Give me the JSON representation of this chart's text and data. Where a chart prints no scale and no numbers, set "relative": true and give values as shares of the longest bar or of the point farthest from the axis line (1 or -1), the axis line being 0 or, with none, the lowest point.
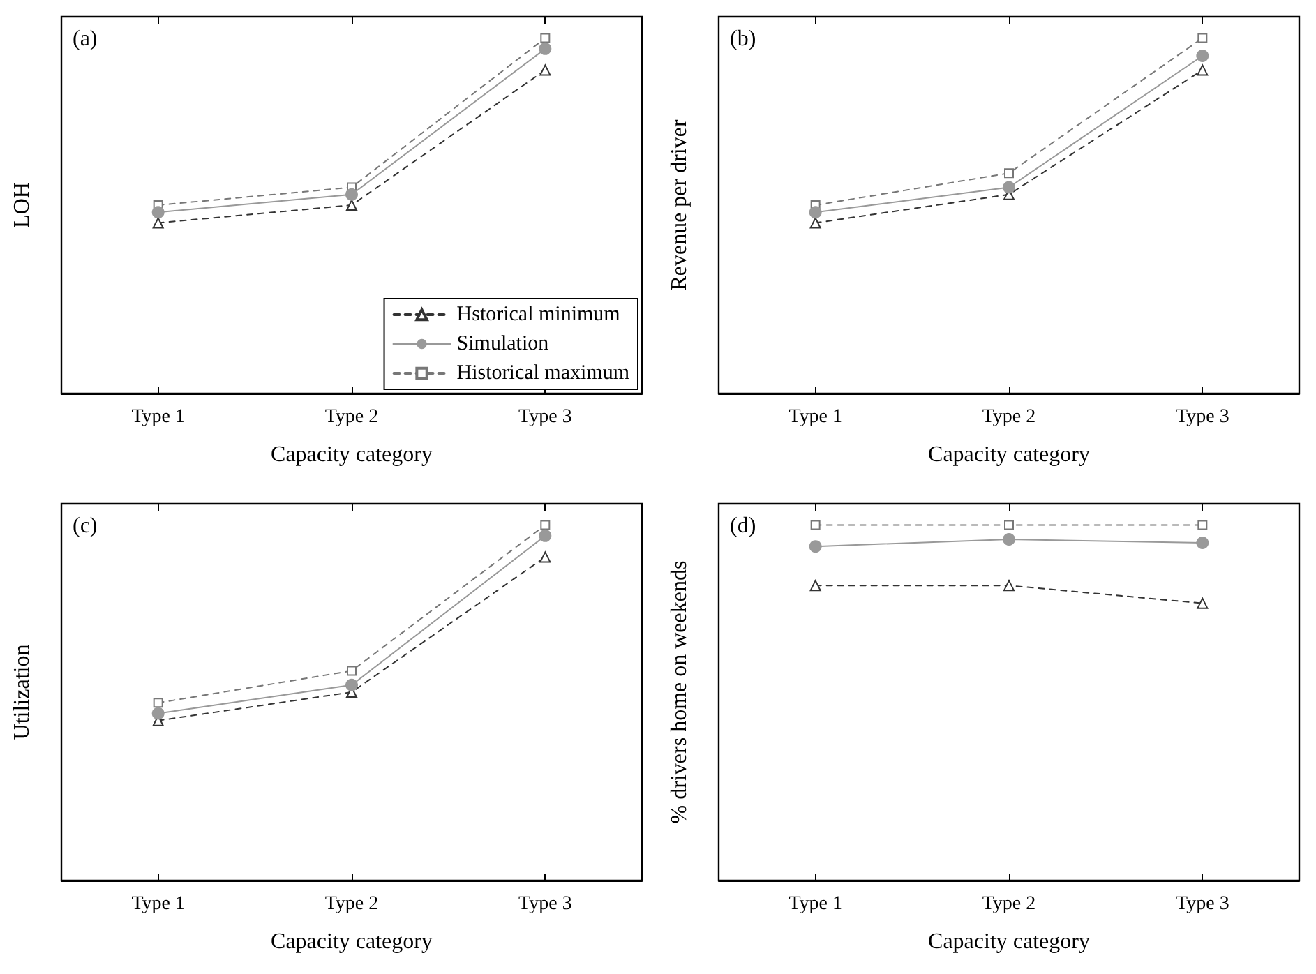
{
  "chart_data": [
    {
      "type": "line",
      "relative": true,
      "annotations": [
        "(a)"
      ],
      "xlabel": "Capacity category",
      "ylabel": "LOH",
      "categories": [
        "Type 1",
        "Type 2",
        "Type 3"
      ],
      "legend": "bottom right",
      "grid": false,
      "series": [
        {
          "name": "Hstorical minimum",
          "color": "#333333",
          "marker": "triangle",
          "line_style": "dashed",
          "values": [
            0.48,
            0.53,
            0.91
          ]
        },
        {
          "name": "Simulation",
          "color": "#999999",
          "marker": "circle",
          "line_style": "solid",
          "values": [
            0.51,
            0.56,
            0.97
          ]
        },
        {
          "name": "Historical maximum",
          "color": "#777777",
          "marker": "square",
          "line_style": "dashed",
          "values": [
            0.53,
            0.58,
            1
          ]
        }
      ]
    },
    {
      "type": "line",
      "relative": true,
      "annotations": [
        "(b)"
      ],
      "xlabel": "Capacity category",
      "ylabel": "Revenue per driver",
      "categories": [
        "Type 1",
        "Type 2",
        "Type 3"
      ],
      "grid": false,
      "series": [
        {
          "color": "#333333",
          "marker": "triangle",
          "line_style": "dashed",
          "values": [
            0.48,
            0.56,
            0.91
          ]
        },
        {
          "color": "#999999",
          "marker": "circle",
          "line_style": "solid",
          "values": [
            0.51,
            0.58,
            0.95
          ]
        },
        {
          "color": "#777777",
          "marker": "square",
          "line_style": "dashed",
          "values": [
            0.53,
            0.62,
            1
          ]
        }
      ]
    },
    {
      "type": "line",
      "relative": true,
      "annotations": [
        "(c)"
      ],
      "xlabel": "Capacity category",
      "ylabel": "Utilization",
      "categories": [
        "Type 1",
        "Type 2",
        "Type 3"
      ],
      "grid": false,
      "series": [
        {
          "color": "#333333",
          "marker": "triangle",
          "line_style": "dashed",
          "values": [
            0.45,
            0.53,
            0.91
          ]
        },
        {
          "color": "#999999",
          "marker": "circle",
          "line_style": "solid",
          "values": [
            0.47,
            0.55,
            0.97
          ]
        },
        {
          "color": "#777777",
          "marker": "square",
          "line_style": "dashed",
          "values": [
            0.5,
            0.59,
            1
          ]
        }
      ]
    },
    {
      "type": "line",
      "relative": true,
      "annotations": [
        "(d)"
      ],
      "xlabel": "Capacity category",
      "ylabel": "% drivers home on weekends",
      "categories": [
        "Type 1",
        "Type 2",
        "Type 3"
      ],
      "grid": false,
      "series": [
        {
          "color": "#333333",
          "marker": "triangle",
          "line_style": "dashed",
          "values": [
            0.83,
            0.83,
            0.78
          ]
        },
        {
          "color": "#999999",
          "marker": "circle",
          "line_style": "solid",
          "values": [
            0.94,
            0.96,
            0.95
          ]
        },
        {
          "color": "#777777",
          "marker": "square",
          "line_style": "dashed",
          "values": [
            1,
            1,
            1
          ]
        }
      ]
    }
  ]
}
